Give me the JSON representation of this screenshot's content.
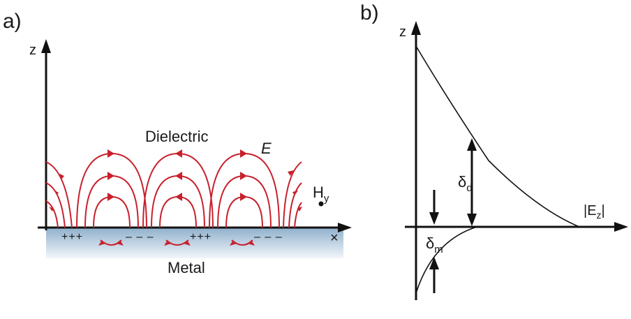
{
  "panel_a": {
    "label": "a)",
    "z_axis_label": "z",
    "x_axis_label": "×",
    "dielectric_label": "Dielectric",
    "metal_label": "Metal",
    "field_label": "E",
    "h_label": "H",
    "h_subscript": "y",
    "charges": [
      "+++",
      "– – –",
      "+++",
      "– – –"
    ],
    "colors": {
      "field_lines": "#c8202c",
      "metal": "#a9c3d9"
    }
  },
  "panel_b": {
    "label": "b)",
    "z_axis_label": "z",
    "x_axis_label": "|E",
    "x_axis_subscript": "z",
    "x_axis_label_end": "|",
    "delta_d_label": "δ",
    "delta_d_sub": "d",
    "delta_m_label": "δ",
    "delta_m_sub": "m"
  }
}
